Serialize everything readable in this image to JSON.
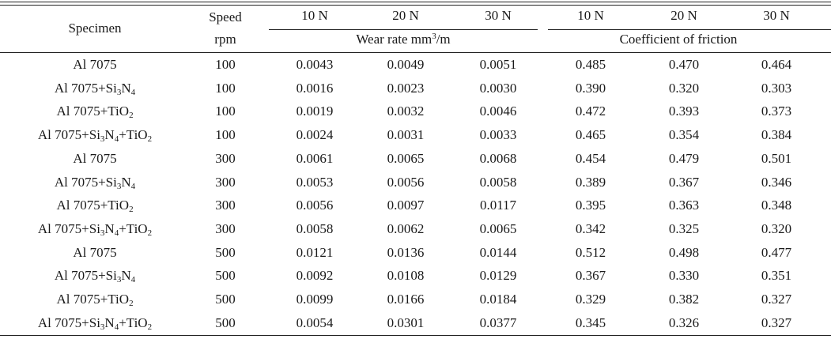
{
  "header": {
    "specimen": "Specimen",
    "speed_line1": "Speed",
    "speed_line2": "rpm",
    "wear_loads": [
      "10 N",
      "20 N",
      "30 N"
    ],
    "cof_loads": [
      "10 N",
      "20 N",
      "30 N"
    ],
    "wear_group_prefix": "Wear rate mm",
    "wear_group_sup": "3",
    "wear_group_suffix": "/m",
    "cof_group": "Coefficient of friction"
  },
  "specimen_variants": {
    "base": "Al 7075",
    "si3n4": [
      "Al 7075+Si",
      "3",
      "N",
      "4",
      ""
    ],
    "tio2": [
      "Al 7075+TiO",
      "2"
    ],
    "hybrid": [
      "Al 7075+Si",
      "3",
      "N",
      "4",
      "+TiO",
      "2"
    ]
  },
  "rows": [
    {
      "specimen": "base",
      "speed": "100",
      "wear": [
        "0.0043",
        "0.0049",
        "0.0051"
      ],
      "cof": [
        "0.485",
        "0.470",
        "0.464"
      ]
    },
    {
      "specimen": "si3n4",
      "speed": "100",
      "wear": [
        "0.0016",
        "0.0023",
        "0.0030"
      ],
      "cof": [
        "0.390",
        "0.320",
        "0.303"
      ]
    },
    {
      "specimen": "tio2",
      "speed": "100",
      "wear": [
        "0.0019",
        "0.0032",
        "0.0046"
      ],
      "cof": [
        "0.472",
        "0.393",
        "0.373"
      ]
    },
    {
      "specimen": "hybrid",
      "speed": "100",
      "wear": [
        "0.0024",
        "0.0031",
        "0.0033"
      ],
      "cof": [
        "0.465",
        "0.354",
        "0.384"
      ]
    },
    {
      "specimen": "base",
      "speed": "300",
      "wear": [
        "0.0061",
        "0.0065",
        "0.0068"
      ],
      "cof": [
        "0.454",
        "0.479",
        "0.501"
      ]
    },
    {
      "specimen": "si3n4",
      "speed": "300",
      "wear": [
        "0.0053",
        "0.0056",
        "0.0058"
      ],
      "cof": [
        "0.389",
        "0.367",
        "0.346"
      ]
    },
    {
      "specimen": "tio2",
      "speed": "300",
      "wear": [
        "0.0056",
        "0.0097",
        "0.0117"
      ],
      "cof": [
        "0.395",
        "0.363",
        "0.348"
      ]
    },
    {
      "specimen": "hybrid",
      "speed": "300",
      "wear": [
        "0.0058",
        "0.0062",
        "0.0065"
      ],
      "cof": [
        "0.342",
        "0.325",
        "0.320"
      ]
    },
    {
      "specimen": "base",
      "speed": "500",
      "wear": [
        "0.0121",
        "0.0136",
        "0.0144"
      ],
      "cof": [
        "0.512",
        "0.498",
        "0.477"
      ]
    },
    {
      "specimen": "si3n4",
      "speed": "500",
      "wear": [
        "0.0092",
        "0.0108",
        "0.0129"
      ],
      "cof": [
        "0.367",
        "0.330",
        "0.351"
      ]
    },
    {
      "specimen": "tio2",
      "speed": "500",
      "wear": [
        "0.0099",
        "0.0166",
        "0.0184"
      ],
      "cof": [
        "0.329",
        "0.382",
        "0.327"
      ]
    },
    {
      "specimen": "hybrid",
      "speed": "500",
      "wear": [
        "0.0054",
        "0.0301",
        "0.0377"
      ],
      "cof": [
        "0.345",
        "0.326",
        "0.327"
      ]
    }
  ]
}
